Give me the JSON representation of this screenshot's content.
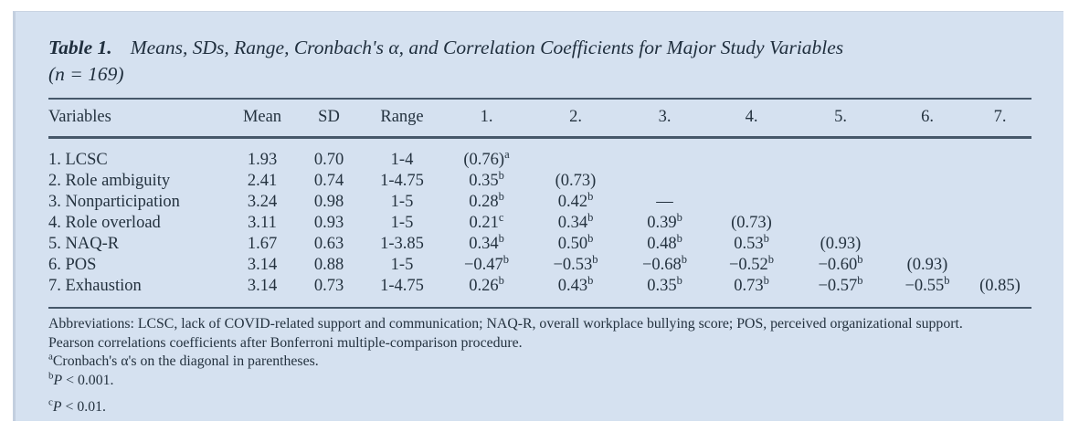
{
  "panel": {
    "background_color": "#d5e1f0",
    "rule_color": "#46586a",
    "text_color": "#24323f"
  },
  "title": {
    "label": "Table 1.",
    "text": "Means, SDs, Range, Cronbach's α, and Correlation Coefficients for Major Study Variables",
    "sample_size": "(n = 169)"
  },
  "table": {
    "columns": [
      "Variables",
      "Mean",
      "SD",
      "Range",
      "1.",
      "2.",
      "3.",
      "4.",
      "5.",
      "6.",
      "7."
    ],
    "rows": [
      {
        "cells": [
          "1. LCSC",
          "1.93",
          "0.70",
          "1-4",
          "(0.76)^a",
          "",
          "",
          "",
          "",
          "",
          ""
        ]
      },
      {
        "cells": [
          "2. Role ambiguity",
          "2.41",
          "0.74",
          "1-4.75",
          "0.35^b",
          "(0.73)",
          "",
          "",
          "",
          "",
          ""
        ]
      },
      {
        "cells": [
          "3. Nonparticipation",
          "3.24",
          "0.98",
          "1-5",
          "0.28^b",
          "0.42^b",
          "—",
          "",
          "",
          "",
          ""
        ]
      },
      {
        "cells": [
          "4. Role overload",
          "3.11",
          "0.93",
          "1-5",
          "0.21^c",
          "0.34^b",
          "0.39^b",
          "(0.73)",
          "",
          "",
          ""
        ]
      },
      {
        "cells": [
          "5. NAQ-R",
          "1.67",
          "0.63",
          "1-3.85",
          "0.34^b",
          "0.50^b",
          "0.48^b",
          "0.53^b",
          "(0.93)",
          "",
          ""
        ]
      },
      {
        "cells": [
          "6. POS",
          "3.14",
          "0.88",
          "1-5",
          "−0.47^b",
          "−0.53^b",
          "−0.68^b",
          "−0.52^b",
          "−0.60^b",
          "(0.93)",
          ""
        ]
      },
      {
        "cells": [
          "7. Exhaustion",
          "3.14",
          "0.73",
          "1-4.75",
          "0.26^b",
          "0.43^b",
          "0.35^b",
          "0.73^b",
          "−0.57^b",
          "−0.55^b",
          "(0.85)"
        ]
      }
    ]
  },
  "footnotes": [
    {
      "sup": "",
      "italic": "",
      "text": "Abbreviations: LCSC, lack of COVID-related support and communication; NAQ-R, overall workplace bullying score; POS, perceived organizational support.",
      "gap": false
    },
    {
      "sup": "",
      "italic": "",
      "text": "Pearson correlations coefficients after Bonferroni multiple-comparison procedure.",
      "gap": false
    },
    {
      "sup": "a",
      "italic": "",
      "text": "Cronbach's α's on the diagonal in parentheses.",
      "gap": false
    },
    {
      "sup": "b",
      "italic": "P",
      "text": " < 0.001.",
      "gap": false
    },
    {
      "sup": "c",
      "italic": "P",
      "text": " < 0.01.",
      "gap": true
    }
  ]
}
